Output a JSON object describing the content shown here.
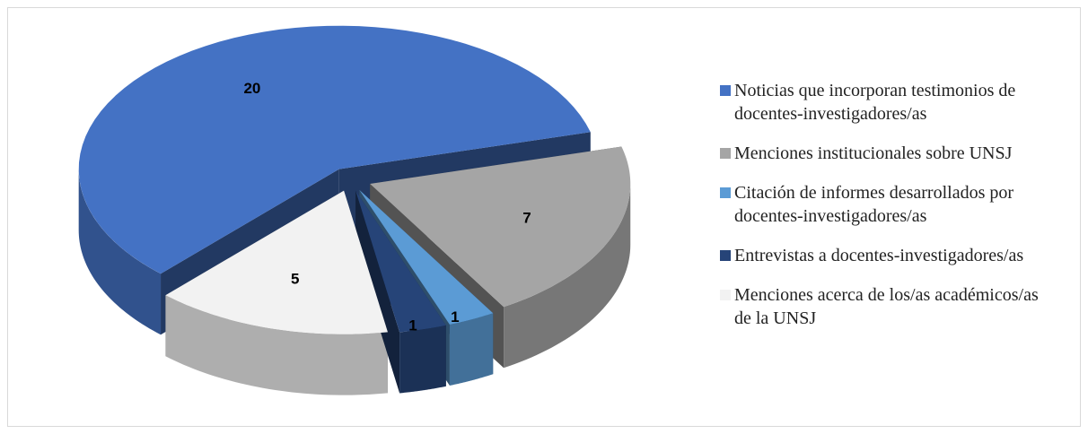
{
  "chart_data": {
    "type": "pie3d",
    "categories": [
      "Noticias que incorporan testimonios de docentes-investigadores/as",
      "Menciones institucionales sobre UNSJ",
      "Citación de informes desarrollados por docentes-investigadores/as",
      "Entrevistas a docentes-investigadores/as",
      "Menciones acerca de los/as académicos/as de la UNSJ"
    ],
    "values": [
      20,
      7,
      1,
      1,
      5
    ],
    "colors": [
      "#4472c4",
      "#a5a5a5",
      "#5b9bd5",
      "#264478",
      "#f2f2f2"
    ],
    "legend": "right"
  }
}
